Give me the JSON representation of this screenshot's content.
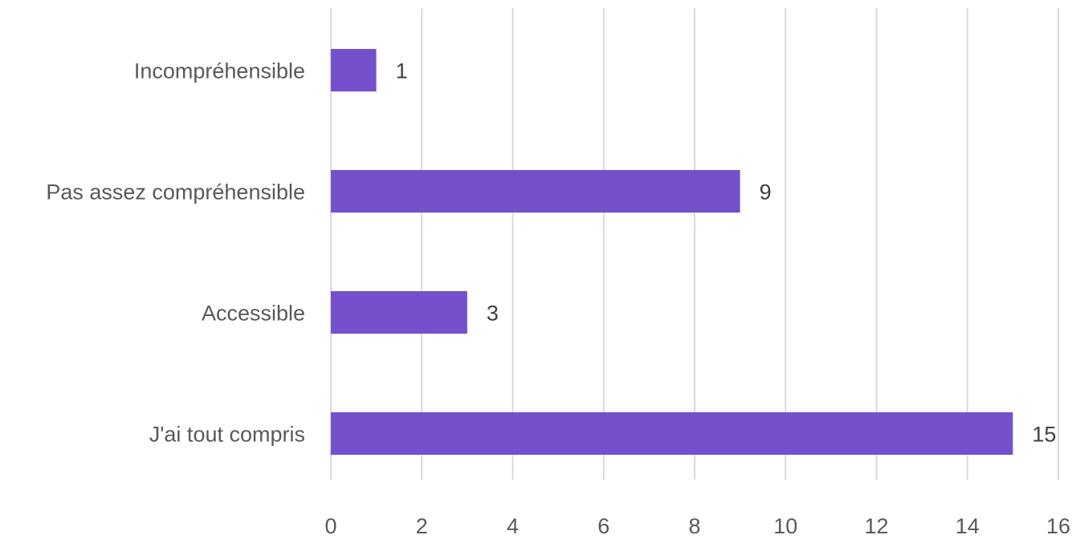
{
  "chart_data": {
    "type": "bar",
    "orientation": "horizontal",
    "title": "",
    "xlabel": "",
    "ylabel": "",
    "categories": [
      "Incompréhensible",
      "Pas assez compréhensible",
      "Accessible",
      "J'ai tout compris"
    ],
    "values": [
      1,
      9,
      3,
      15
    ],
    "data_labels": [
      "1",
      "9",
      "3",
      "15"
    ],
    "xlim": [
      0,
      16
    ],
    "x_ticks": [
      0,
      2,
      4,
      6,
      8,
      10,
      12,
      14,
      16
    ],
    "x_tick_labels": [
      "0",
      "2",
      "4",
      "6",
      "8",
      "10",
      "12",
      "14",
      "16"
    ],
    "grid": "vertical",
    "legend": "none",
    "bar_color": "#7550cc"
  }
}
